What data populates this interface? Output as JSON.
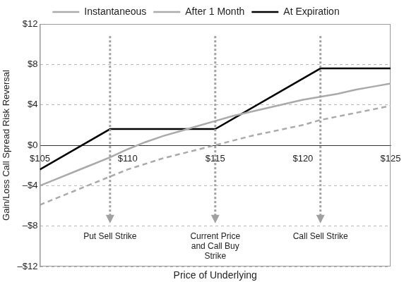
{
  "chart_data": {
    "type": "line",
    "x_label": "Price of Underlying",
    "y_label": "Gain/Loss Call Spread Risk Reversal",
    "xlim": [
      105,
      125
    ],
    "xticks": [
      {
        "value": 105,
        "label": "$105"
      },
      {
        "value": 110,
        "label": "$110"
      },
      {
        "value": 115,
        "label": "$115"
      },
      {
        "value": 120,
        "label": "$120"
      },
      {
        "value": 125,
        "label": "$125"
      }
    ],
    "ylim": [
      -12,
      12
    ],
    "yticks": [
      {
        "value": -12,
        "label": "–$12"
      },
      {
        "value": -8,
        "label": "–$8"
      },
      {
        "value": -4,
        "label": "–$4"
      },
      {
        "value": 0,
        "label": "$0"
      },
      {
        "value": 4,
        "label": "$4"
      },
      {
        "value": 8,
        "label": "$8"
      },
      {
        "value": 12,
        "label": "$12"
      }
    ],
    "grid": true,
    "legend": "top",
    "series": [
      {
        "name": "Instantaneous",
        "color": "#aaaaaa",
        "line_style": "dashed",
        "x": [
          105,
          107,
          109,
          110,
          112,
          115,
          117,
          120,
          121,
          123,
          125
        ],
        "values": [
          -5.9,
          -4.5,
          -3.1,
          -2.4,
          -1.3,
          0,
          0.9,
          2.0,
          2.5,
          3.2,
          3.9
        ]
      },
      {
        "name": "After 1 Month",
        "color": "#aaaaaa",
        "line_style": "solid",
        "x": [
          105,
          106,
          107,
          108,
          109,
          110,
          111,
          112,
          113,
          114,
          115,
          116,
          117,
          118,
          119,
          120,
          121,
          122,
          123,
          124,
          125
        ],
        "values": [
          -4.0,
          -3.3,
          -2.6,
          -1.9,
          -1.2,
          -0.4,
          0.3,
          0.9,
          1.4,
          1.9,
          2.4,
          2.9,
          3.3,
          3.7,
          4.1,
          4.5,
          4.8,
          5.1,
          5.5,
          5.8,
          6.1
        ]
      },
      {
        "name": "At Expiration",
        "color": "#000000",
        "line_style": "solid",
        "x": [
          105,
          109,
          115,
          121,
          125
        ],
        "values": [
          -2.4,
          1.6,
          1.6,
          7.6,
          7.6
        ]
      }
    ],
    "annotations": [
      {
        "x": 109,
        "lines": [
          "Put Sell Strike"
        ]
      },
      {
        "x": 115,
        "lines": [
          "Current Price",
          "and Call Buy",
          "Strike"
        ]
      },
      {
        "x": 121,
        "lines": [
          "Call Sell Strike"
        ]
      }
    ]
  }
}
